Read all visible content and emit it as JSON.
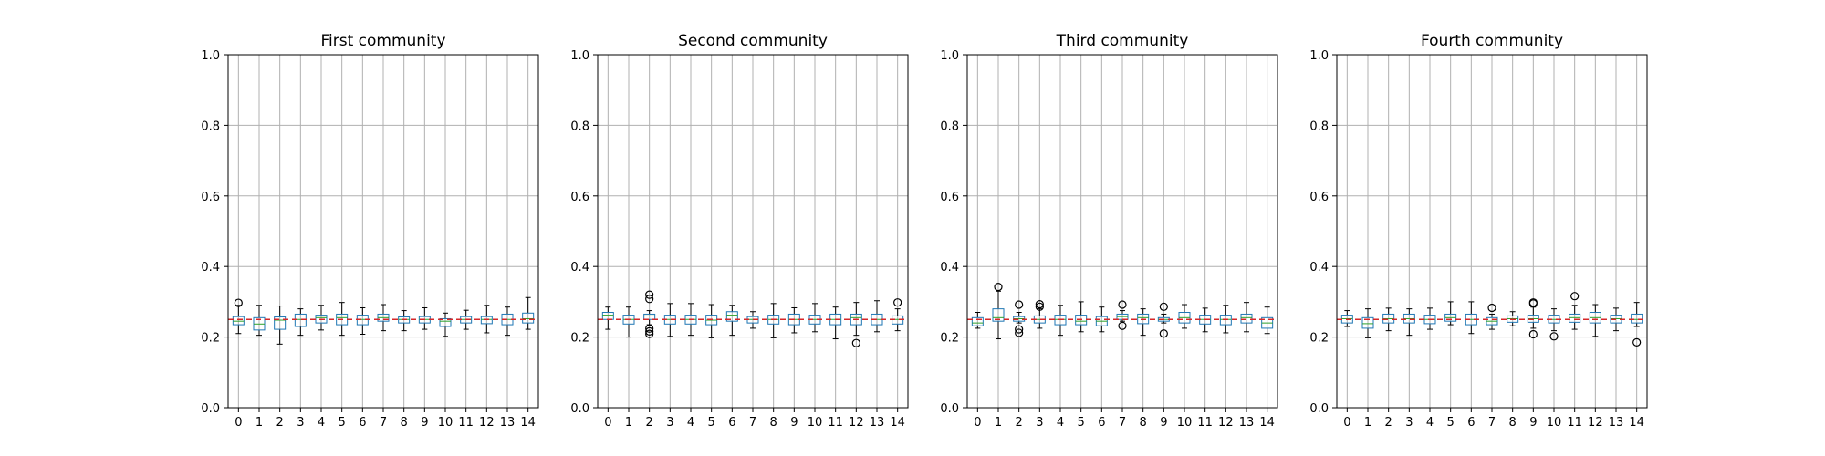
{
  "chart_data": [
    {
      "type": "box",
      "title": "First community",
      "categories": [
        "0",
        "1",
        "2",
        "3",
        "4",
        "5",
        "6",
        "7",
        "8",
        "9",
        "10",
        "11",
        "12",
        "13",
        "14"
      ],
      "ylim": [
        0.0,
        1.0
      ],
      "yticks": [
        "0.0",
        "0.2",
        "0.4",
        "0.6",
        "0.8",
        "1.0"
      ],
      "grid": true,
      "reference_line": 0.25,
      "boxes": [
        {
          "whislo": 0.21,
          "q1": 0.235,
          "med": 0.245,
          "q3": 0.258,
          "whishi": 0.29,
          "fliers": [
            0.297
          ]
        },
        {
          "whislo": 0.205,
          "q1": 0.22,
          "med": 0.237,
          "q3": 0.255,
          "whishi": 0.29,
          "fliers": []
        },
        {
          "whislo": 0.18,
          "q1": 0.222,
          "med": 0.248,
          "q3": 0.257,
          "whishi": 0.288,
          "fliers": []
        },
        {
          "whislo": 0.205,
          "q1": 0.23,
          "med": 0.25,
          "q3": 0.265,
          "whishi": 0.28,
          "fliers": []
        },
        {
          "whislo": 0.22,
          "q1": 0.24,
          "med": 0.255,
          "q3": 0.262,
          "whishi": 0.29,
          "fliers": []
        },
        {
          "whislo": 0.205,
          "q1": 0.235,
          "med": 0.255,
          "q3": 0.265,
          "whishi": 0.298,
          "fliers": []
        },
        {
          "whislo": 0.208,
          "q1": 0.235,
          "med": 0.25,
          "q3": 0.262,
          "whishi": 0.283,
          "fliers": []
        },
        {
          "whislo": 0.218,
          "q1": 0.245,
          "med": 0.255,
          "q3": 0.265,
          "whishi": 0.292,
          "fliers": []
        },
        {
          "whislo": 0.218,
          "q1": 0.24,
          "med": 0.25,
          "q3": 0.257,
          "whishi": 0.275,
          "fliers": []
        },
        {
          "whislo": 0.222,
          "q1": 0.24,
          "med": 0.25,
          "q3": 0.258,
          "whishi": 0.283,
          "fliers": []
        },
        {
          "whislo": 0.202,
          "q1": 0.23,
          "med": 0.245,
          "q3": 0.252,
          "whishi": 0.268,
          "fliers": []
        },
        {
          "whislo": 0.222,
          "q1": 0.24,
          "med": 0.25,
          "q3": 0.258,
          "whishi": 0.276,
          "fliers": []
        },
        {
          "whislo": 0.212,
          "q1": 0.238,
          "med": 0.25,
          "q3": 0.258,
          "whishi": 0.29,
          "fliers": []
        },
        {
          "whislo": 0.205,
          "q1": 0.235,
          "med": 0.25,
          "q3": 0.265,
          "whishi": 0.285,
          "fliers": []
        },
        {
          "whislo": 0.222,
          "q1": 0.24,
          "med": 0.252,
          "q3": 0.268,
          "whishi": 0.312,
          "fliers": []
        }
      ]
    },
    {
      "type": "box",
      "title": "Second community",
      "categories": [
        "0",
        "1",
        "2",
        "3",
        "4",
        "5",
        "6",
        "7",
        "8",
        "9",
        "10",
        "11",
        "12",
        "13",
        "14"
      ],
      "ylim": [
        0.0,
        1.0
      ],
      "yticks": [
        "0.0",
        "0.2",
        "0.4",
        "0.6",
        "0.8",
        "1.0"
      ],
      "grid": true,
      "reference_line": 0.25,
      "boxes": [
        {
          "whislo": 0.222,
          "q1": 0.25,
          "med": 0.262,
          "q3": 0.27,
          "whishi": 0.285,
          "fliers": []
        },
        {
          "whislo": 0.2,
          "q1": 0.237,
          "med": 0.25,
          "q3": 0.262,
          "whishi": 0.285,
          "fliers": []
        },
        {
          "whislo": 0.235,
          "q1": 0.25,
          "med": 0.26,
          "q3": 0.265,
          "whishi": 0.275,
          "fliers": [
            0.32,
            0.308,
            0.224,
            0.216,
            0.209
          ]
        },
        {
          "whislo": 0.202,
          "q1": 0.237,
          "med": 0.25,
          "q3": 0.262,
          "whishi": 0.295,
          "fliers": []
        },
        {
          "whislo": 0.205,
          "q1": 0.237,
          "med": 0.25,
          "q3": 0.262,
          "whishi": 0.295,
          "fliers": []
        },
        {
          "whislo": 0.198,
          "q1": 0.235,
          "med": 0.248,
          "q3": 0.262,
          "whishi": 0.292,
          "fliers": []
        },
        {
          "whislo": 0.205,
          "q1": 0.245,
          "med": 0.262,
          "q3": 0.272,
          "whishi": 0.29,
          "fliers": []
        },
        {
          "whislo": 0.225,
          "q1": 0.24,
          "med": 0.25,
          "q3": 0.258,
          "whishi": 0.272,
          "fliers": []
        },
        {
          "whislo": 0.198,
          "q1": 0.237,
          "med": 0.25,
          "q3": 0.262,
          "whishi": 0.295,
          "fliers": []
        },
        {
          "whislo": 0.212,
          "q1": 0.235,
          "med": 0.25,
          "q3": 0.265,
          "whishi": 0.283,
          "fliers": []
        },
        {
          "whislo": 0.215,
          "q1": 0.237,
          "med": 0.25,
          "q3": 0.262,
          "whishi": 0.295,
          "fliers": []
        },
        {
          "whislo": 0.195,
          "q1": 0.235,
          "med": 0.25,
          "q3": 0.265,
          "whishi": 0.285,
          "fliers": []
        },
        {
          "whislo": 0.205,
          "q1": 0.235,
          "med": 0.255,
          "q3": 0.265,
          "whishi": 0.298,
          "fliers": [
            0.183
          ]
        },
        {
          "whislo": 0.215,
          "q1": 0.235,
          "med": 0.25,
          "q3": 0.265,
          "whishi": 0.303,
          "fliers": []
        },
        {
          "whislo": 0.218,
          "q1": 0.237,
          "med": 0.25,
          "q3": 0.26,
          "whishi": 0.28,
          "fliers": [
            0.298
          ]
        }
      ]
    },
    {
      "type": "box",
      "title": "Third community",
      "categories": [
        "0",
        "1",
        "2",
        "3",
        "4",
        "5",
        "6",
        "7",
        "8",
        "9",
        "10",
        "11",
        "12",
        "13",
        "14"
      ],
      "ylim": [
        0.0,
        1.0
      ],
      "yticks": [
        "0.0",
        "0.2",
        "0.4",
        "0.6",
        "0.8",
        "1.0"
      ],
      "grid": true,
      "reference_line": 0.25,
      "boxes": [
        {
          "whislo": 0.225,
          "q1": 0.232,
          "med": 0.24,
          "q3": 0.255,
          "whishi": 0.27,
          "fliers": []
        },
        {
          "whislo": 0.195,
          "q1": 0.245,
          "med": 0.255,
          "q3": 0.28,
          "whishi": 0.33,
          "fliers": [
            0.342
          ]
        },
        {
          "whislo": 0.24,
          "q1": 0.245,
          "med": 0.252,
          "q3": 0.258,
          "whishi": 0.27,
          "fliers": [
            0.292,
            0.222,
            0.212
          ]
        },
        {
          "whislo": 0.225,
          "q1": 0.24,
          "med": 0.25,
          "q3": 0.26,
          "whishi": 0.28,
          "fliers": [
            0.293,
            0.286
          ]
        },
        {
          "whislo": 0.205,
          "q1": 0.235,
          "med": 0.25,
          "q3": 0.262,
          "whishi": 0.29,
          "fliers": []
        },
        {
          "whislo": 0.215,
          "q1": 0.235,
          "med": 0.245,
          "q3": 0.262,
          "whishi": 0.3,
          "fliers": []
        },
        {
          "whislo": 0.215,
          "q1": 0.232,
          "med": 0.245,
          "q3": 0.258,
          "whishi": 0.285,
          "fliers": []
        },
        {
          "whislo": 0.245,
          "q1": 0.25,
          "med": 0.258,
          "q3": 0.265,
          "whishi": 0.275,
          "fliers": [
            0.292,
            0.232
          ]
        },
        {
          "whislo": 0.205,
          "q1": 0.238,
          "med": 0.255,
          "q3": 0.265,
          "whishi": 0.28,
          "fliers": []
        },
        {
          "whislo": 0.24,
          "q1": 0.245,
          "med": 0.25,
          "q3": 0.255,
          "whishi": 0.265,
          "fliers": [
            0.286,
            0.21
          ]
        },
        {
          "whislo": 0.225,
          "q1": 0.24,
          "med": 0.255,
          "q3": 0.27,
          "whishi": 0.292,
          "fliers": []
        },
        {
          "whislo": 0.215,
          "q1": 0.237,
          "med": 0.25,
          "q3": 0.262,
          "whishi": 0.282,
          "fliers": []
        },
        {
          "whislo": 0.212,
          "q1": 0.235,
          "med": 0.25,
          "q3": 0.262,
          "whishi": 0.29,
          "fliers": []
        },
        {
          "whislo": 0.215,
          "q1": 0.24,
          "med": 0.255,
          "q3": 0.265,
          "whishi": 0.298,
          "fliers": []
        },
        {
          "whislo": 0.21,
          "q1": 0.225,
          "med": 0.24,
          "q3": 0.255,
          "whishi": 0.285,
          "fliers": []
        }
      ]
    },
    {
      "type": "box",
      "title": "Fourth community",
      "categories": [
        "0",
        "1",
        "2",
        "3",
        "4",
        "5",
        "6",
        "7",
        "8",
        "9",
        "10",
        "11",
        "12",
        "13",
        "14"
      ],
      "ylim": [
        0.0,
        1.0
      ],
      "yticks": [
        "0.0",
        "0.2",
        "0.4",
        "0.6",
        "0.8",
        "1.0"
      ],
      "grid": true,
      "reference_line": 0.25,
      "boxes": [
        {
          "whislo": 0.23,
          "q1": 0.24,
          "med": 0.252,
          "q3": 0.262,
          "whishi": 0.275,
          "fliers": []
        },
        {
          "whislo": 0.198,
          "q1": 0.225,
          "med": 0.238,
          "q3": 0.255,
          "whishi": 0.28,
          "fliers": []
        },
        {
          "whislo": 0.218,
          "q1": 0.24,
          "med": 0.252,
          "q3": 0.265,
          "whishi": 0.282,
          "fliers": []
        },
        {
          "whislo": 0.205,
          "q1": 0.24,
          "med": 0.252,
          "q3": 0.265,
          "whishi": 0.28,
          "fliers": []
        },
        {
          "whislo": 0.222,
          "q1": 0.238,
          "med": 0.25,
          "q3": 0.262,
          "whishi": 0.282,
          "fliers": []
        },
        {
          "whislo": 0.235,
          "q1": 0.245,
          "med": 0.255,
          "q3": 0.265,
          "whishi": 0.3,
          "fliers": []
        },
        {
          "whislo": 0.21,
          "q1": 0.235,
          "med": 0.25,
          "q3": 0.265,
          "whishi": 0.3,
          "fliers": []
        },
        {
          "whislo": 0.222,
          "q1": 0.235,
          "med": 0.245,
          "q3": 0.255,
          "whishi": 0.265,
          "fliers": [
            0.283
          ]
        },
        {
          "whislo": 0.232,
          "q1": 0.242,
          "med": 0.252,
          "q3": 0.26,
          "whishi": 0.272,
          "fliers": []
        },
        {
          "whislo": 0.225,
          "q1": 0.242,
          "med": 0.252,
          "q3": 0.262,
          "whishi": 0.285,
          "fliers": [
            0.298,
            0.295,
            0.208
          ]
        },
        {
          "whislo": 0.218,
          "q1": 0.24,
          "med": 0.25,
          "q3": 0.262,
          "whishi": 0.28,
          "fliers": [
            0.202
          ]
        },
        {
          "whislo": 0.222,
          "q1": 0.242,
          "med": 0.255,
          "q3": 0.265,
          "whishi": 0.29,
          "fliers": [
            0.316
          ]
        },
        {
          "whislo": 0.202,
          "q1": 0.24,
          "med": 0.255,
          "q3": 0.27,
          "whishi": 0.292,
          "fliers": []
        },
        {
          "whislo": 0.218,
          "q1": 0.24,
          "med": 0.252,
          "q3": 0.262,
          "whishi": 0.282,
          "fliers": []
        },
        {
          "whislo": 0.23,
          "q1": 0.24,
          "med": 0.25,
          "q3": 0.265,
          "whishi": 0.298,
          "fliers": [
            0.185
          ]
        }
      ]
    }
  ],
  "colors": {
    "box": "#1f77b4",
    "median": "#2ca02c",
    "whisker": "#000000",
    "reference_line": "#d62728",
    "grid": "#b0b0b0"
  }
}
